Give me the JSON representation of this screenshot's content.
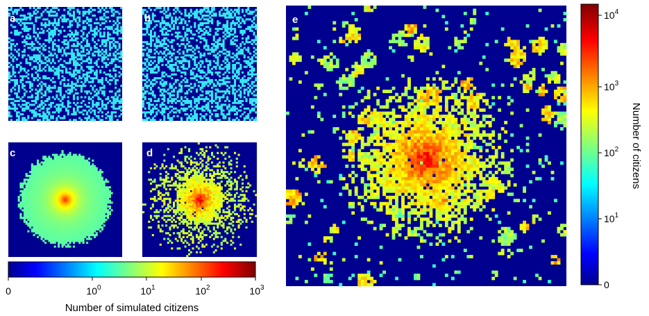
{
  "chart_data": [
    {
      "panel": "a",
      "type": "heatmap",
      "grid": [
        60,
        60
      ],
      "values": "binary occupancy, ~40% of cells hold 1 simulated citizen (cyan), rest 0 (navy)",
      "value_levels": [
        0,
        1
      ],
      "occupied_fraction": 0.4
    },
    {
      "panel": "b",
      "type": "heatmap",
      "grid": [
        60,
        60
      ],
      "value_levels": [
        0,
        1
      ],
      "occupied_fraction": 0.4
    },
    {
      "panel": "c",
      "type": "heatmap",
      "grid": [
        60,
        60
      ],
      "pattern": "radial",
      "center_value": 100,
      "edge_value": 1,
      "support_radius_fraction": 0.5
    },
    {
      "panel": "d",
      "type": "heatmap",
      "grid": [
        60,
        60
      ],
      "pattern": "radial-noisy",
      "center_value": 300,
      "edge_value": 10,
      "support_radius_fraction": 0.55
    },
    {
      "panel": "e",
      "type": "heatmap",
      "grid": [
        90,
        90
      ],
      "pattern": "city-center-with-satellites",
      "max_value": 15000,
      "colorbar_label": "Number of citizens",
      "colorbar_ticks": [
        "0",
        "10^1",
        "10^2",
        "10^3",
        "10^4"
      ],
      "colorbar_range": [
        0,
        15000
      ]
    }
  ],
  "labels": {
    "panel_a": "a",
    "panel_b": "b",
    "panel_c": "c",
    "panel_d": "d",
    "panel_e": "e",
    "bottom_colorbar_title": "Number of simulated citizens",
    "right_colorbar_title": "Number of citizens"
  },
  "bottom_colorbar": {
    "scale": "log",
    "range": [
      0,
      1000
    ],
    "ticks": [
      {
        "value": 0,
        "base": "0",
        "exp": ""
      },
      {
        "value": 1,
        "base": "10",
        "exp": "0"
      },
      {
        "value": 10,
        "base": "10",
        "exp": "1"
      },
      {
        "value": 100,
        "base": "10",
        "exp": "2"
      },
      {
        "value": 1000,
        "base": "10",
        "exp": "3"
      }
    ]
  },
  "right_colorbar": {
    "scale": "log",
    "range": [
      0,
      15000
    ],
    "ticks": [
      {
        "value": 0,
        "base": "0",
        "exp": ""
      },
      {
        "value": 10,
        "base": "10",
        "exp": "1"
      },
      {
        "value": 100,
        "base": "10",
        "exp": "2"
      },
      {
        "value": 1000,
        "base": "10",
        "exp": "3"
      },
      {
        "value": 10000,
        "base": "10",
        "exp": "4"
      }
    ]
  },
  "colors": {
    "navy": "#00008f",
    "cyan": "#36e6f2",
    "jet_stops": [
      "#00008f",
      "#0000ff",
      "#00ffff",
      "#ffff00",
      "#ff0000",
      "#800000"
    ]
  }
}
